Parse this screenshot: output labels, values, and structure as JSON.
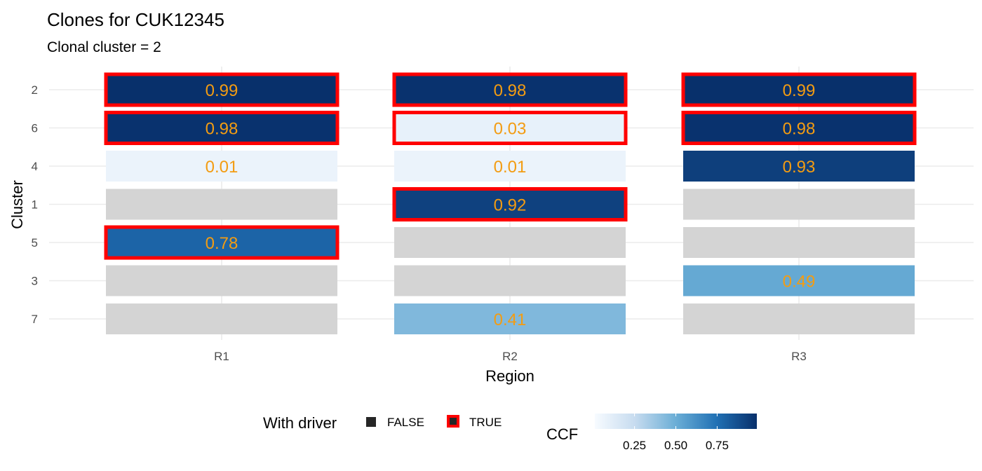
{
  "chart_data": {
    "type": "heatmap",
    "title": "Clones for CUK12345",
    "subtitle": "Clonal cluster =  2",
    "xlabel": "Region",
    "ylabel": "Cluster",
    "x_categories": [
      "R1",
      "R2",
      "R3"
    ],
    "y_categories": [
      "2",
      "6",
      "4",
      "1",
      "5",
      "3",
      "7"
    ],
    "cells": [
      {
        "x": "R1",
        "y": "2",
        "ccf": 0.99,
        "label": "0.99",
        "driver": true
      },
      {
        "x": "R1",
        "y": "6",
        "ccf": 0.98,
        "label": "0.98",
        "driver": true
      },
      {
        "x": "R1",
        "y": "4",
        "ccf": 0.01,
        "label": "0.01",
        "driver": false
      },
      {
        "x": "R1",
        "y": "1",
        "ccf": null,
        "label": "",
        "driver": false
      },
      {
        "x": "R1",
        "y": "5",
        "ccf": 0.78,
        "label": "0.78",
        "driver": true
      },
      {
        "x": "R1",
        "y": "3",
        "ccf": null,
        "label": "",
        "driver": false
      },
      {
        "x": "R1",
        "y": "7",
        "ccf": null,
        "label": "",
        "driver": false
      },
      {
        "x": "R2",
        "y": "2",
        "ccf": 0.98,
        "label": "0.98",
        "driver": true
      },
      {
        "x": "R2",
        "y": "6",
        "ccf": 0.03,
        "label": "0.03",
        "driver": true
      },
      {
        "x": "R2",
        "y": "4",
        "ccf": 0.01,
        "label": "0.01",
        "driver": false
      },
      {
        "x": "R2",
        "y": "1",
        "ccf": 0.92,
        "label": "0.92",
        "driver": true
      },
      {
        "x": "R2",
        "y": "5",
        "ccf": null,
        "label": "",
        "driver": false
      },
      {
        "x": "R2",
        "y": "3",
        "ccf": null,
        "label": "",
        "driver": false
      },
      {
        "x": "R2",
        "y": "7",
        "ccf": 0.41,
        "label": "0.41",
        "driver": false
      },
      {
        "x": "R3",
        "y": "2",
        "ccf": 0.99,
        "label": "0.99",
        "driver": true
      },
      {
        "x": "R3",
        "y": "6",
        "ccf": 0.98,
        "label": "0.98",
        "driver": true
      },
      {
        "x": "R3",
        "y": "4",
        "ccf": 0.93,
        "label": "0.93",
        "driver": false
      },
      {
        "x": "R3",
        "y": "1",
        "ccf": null,
        "label": "",
        "driver": false
      },
      {
        "x": "R3",
        "y": "5",
        "ccf": null,
        "label": "",
        "driver": false
      },
      {
        "x": "R3",
        "y": "3",
        "ccf": 0.49,
        "label": "0.49",
        "driver": false
      },
      {
        "x": "R3",
        "y": "7",
        "ccf": null,
        "label": "",
        "driver": false
      }
    ],
    "legend": {
      "driver_title": "With driver",
      "driver_labels": [
        "FALSE",
        "TRUE"
      ],
      "ccf_title": "CCF",
      "ccf_ticks": [
        "0.25",
        "0.50",
        "0.75"
      ],
      "position": "bottom"
    },
    "colors": {
      "missing": "#d4d4d4",
      "driver_border": "#ff0000",
      "value_text": "#f39c12",
      "scale": [
        "#e9eff9",
        "#08306b"
      ]
    },
    "grid": true
  }
}
